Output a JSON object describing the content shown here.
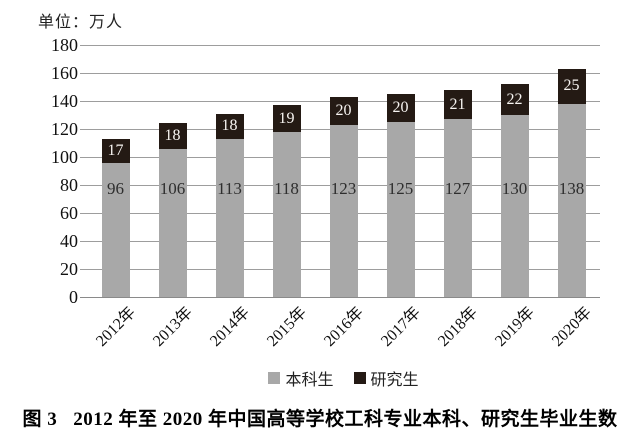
{
  "unit_label": "单位：万人",
  "chart_data": {
    "type": "bar",
    "stacked": true,
    "title": "",
    "unit_label": "单位：万人",
    "categories": [
      "2012年",
      "2013年",
      "2014年",
      "2015年",
      "2016年",
      "2017年",
      "2018年",
      "2019年",
      "2020年"
    ],
    "series": [
      {
        "name": "本科生",
        "color": "#a8a8a8",
        "values": [
          96,
          106,
          113,
          118,
          123,
          125,
          127,
          130,
          138
        ]
      },
      {
        "name": "研究生",
        "color": "#241a14",
        "values": [
          17,
          18,
          18,
          19,
          20,
          20,
          21,
          22,
          25
        ]
      }
    ],
    "ylim": [
      0,
      180
    ],
    "ytick_step": 20,
    "grid": true,
    "legend_position": "bottom",
    "colors": {
      "grid": "#9d9d9d",
      "axis": "#8a8a8a",
      "text": "#111111",
      "label_on_gray": "#2e2e2e",
      "label_on_black": "#f7f4f1"
    }
  },
  "caption": {
    "prefix": "图 3",
    "text": "2012 年至 2020 年中国高等学校工科专业本科、研究生毕业生数"
  }
}
